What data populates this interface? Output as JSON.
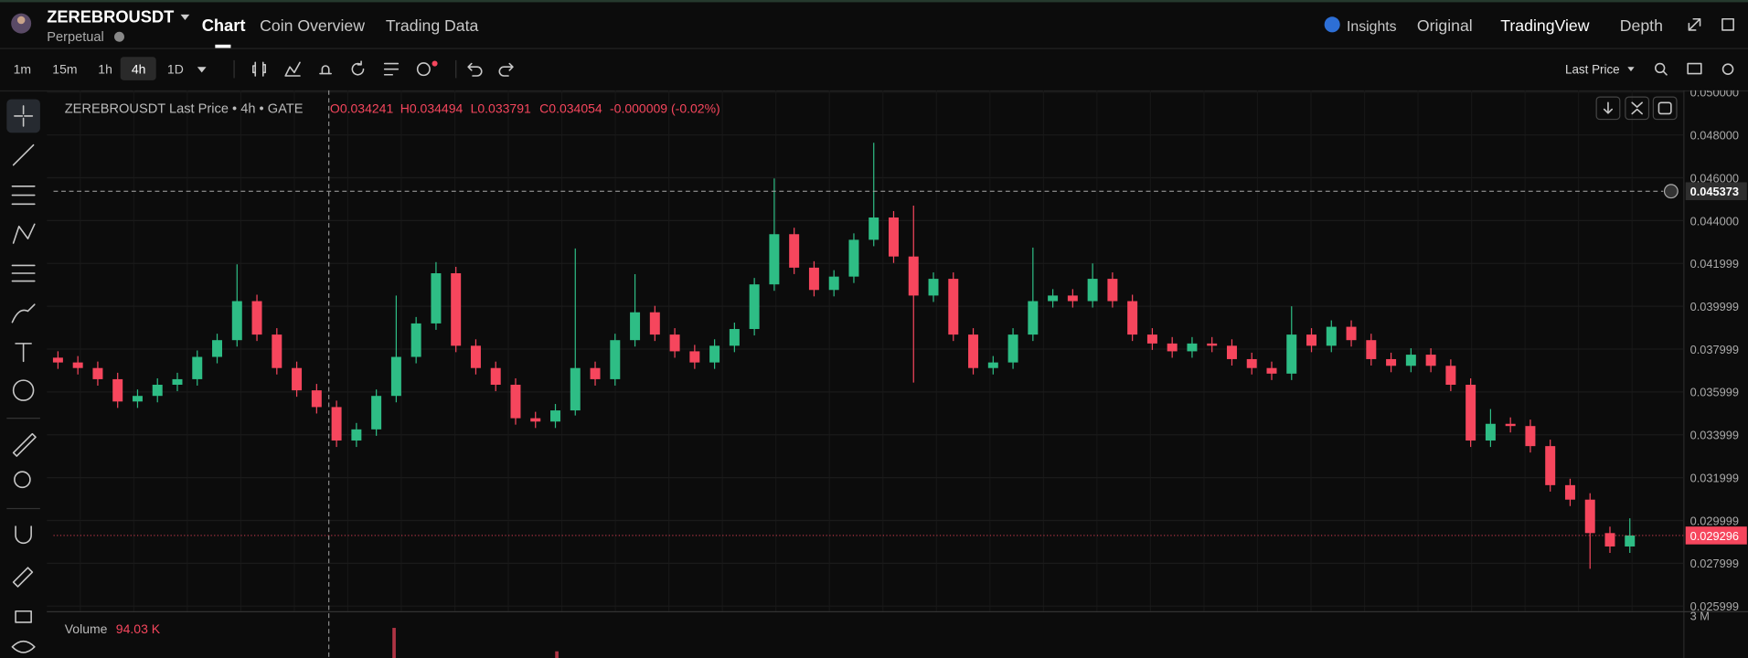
{
  "header": {
    "symbol": "ZEREBROUSDT",
    "contract": "Perpetual",
    "tabs": [
      "Chart",
      "Coin Overview",
      "Trading Data"
    ],
    "right_menu": [
      "Insights",
      "Original",
      "TradingView",
      "Depth"
    ]
  },
  "toolbar": {
    "intervals": [
      "1m",
      "15m",
      "1h",
      "4h",
      "1D"
    ],
    "price_source": "Last Price"
  },
  "chart_data": {
    "type": "candlestick",
    "title": "ZEREBROUSDT Last Price • 4h • GATE",
    "ohlc_legend": [
      "O0.034241",
      "H0.034494",
      "L0.033791",
      "C0.034054",
      "-0.000009 (-0.02%)"
    ],
    "up_color": "#2ebd85",
    "down_color": "#f6465d",
    "grid": true,
    "ylim": [
      0.025762,
      0.050084
    ],
    "yticks": [
      {
        "value": 0.05,
        "label": "0.050000"
      },
      {
        "value": 0.048,
        "label": "0.048000"
      },
      {
        "value": 0.046,
        "label": "0.046000"
      },
      {
        "value": 0.044,
        "label": "0.044000"
      },
      0.041999,
      0.039999,
      0.037999,
      0.035999,
      0.033999,
      0.031999,
      0.029999,
      0.027999,
      0.025999
    ],
    "crosshair_price": 0.045373,
    "last_price": 0.029296,
    "candles": [
      [
        0.0376,
        0.0379,
        0.037076,
        0.037376
      ],
      [
        0.037376,
        0.037676,
        0.036816,
        0.037116
      ],
      [
        0.037116,
        0.037416,
        0.036295,
        0.036595
      ],
      [
        0.036595,
        0.036895,
        0.035253,
        0.035553
      ],
      [
        0.035553,
        0.036114,
        0.035253,
        0.035814
      ],
      [
        0.035814,
        0.036635,
        0.035514,
        0.036335
      ],
      [
        0.036335,
        0.036895,
        0.036035,
        0.036595
      ],
      [
        0.036595,
        0.037936,
        0.036295,
        0.037636
      ],
      [
        0.037636,
        0.038718,
        0.037336,
        0.038418
      ],
      [
        0.038418,
        0.041959,
        0.038118,
        0.04024
      ],
      [
        0.04024,
        0.04054,
        0.038378,
        0.038678
      ],
      [
        0.038678,
        0.038978,
        0.036816,
        0.037116
      ],
      [
        0.037116,
        0.037416,
        0.035774,
        0.036074
      ],
      [
        0.036074,
        0.036374,
        0.034993,
        0.035293
      ],
      [
        0.035293,
        0.035593,
        0.03343,
        0.03373
      ],
      [
        0.03373,
        0.034551,
        0.03343,
        0.034251
      ],
      [
        0.034251,
        0.036114,
        0.033951,
        0.035814
      ],
      [
        0.035814,
        0.0405,
        0.035514,
        0.037636
      ],
      [
        0.037636,
        0.039499,
        0.037336,
        0.039199
      ],
      [
        0.039199,
        0.042063,
        0.038899,
        0.041542
      ],
      [
        0.041542,
        0.041842,
        0.037857,
        0.038157
      ],
      [
        0.038157,
        0.038457,
        0.036816,
        0.037116
      ],
      [
        0.037116,
        0.037416,
        0.036035,
        0.036335
      ],
      [
        0.036335,
        0.036635,
        0.034472,
        0.034772
      ],
      [
        0.034772,
        0.035072,
        0.034316,
        0.034616
      ],
      [
        0.034616,
        0.035437,
        0.034316,
        0.035137
      ],
      [
        0.035137,
        0.0427,
        0.0349,
        0.037116
      ],
      [
        0.037116,
        0.037416,
        0.036295,
        0.036595
      ],
      [
        0.036595,
        0.038718,
        0.036295,
        0.038418
      ],
      [
        0.038418,
        0.0415,
        0.038118,
        0.039719
      ],
      [
        0.039719,
        0.040019,
        0.038378,
        0.038678
      ],
      [
        0.038678,
        0.038978,
        0.037597,
        0.037897
      ],
      [
        0.037897,
        0.038197,
        0.037076,
        0.037376
      ],
      [
        0.037376,
        0.038457,
        0.037076,
        0.038157
      ],
      [
        0.038157,
        0.039238,
        0.037857,
        0.038938
      ],
      [
        0.038938,
        0.041322,
        0.038638,
        0.041022
      ],
      [
        0.041022,
        0.045969,
        0.040722,
        0.043366
      ],
      [
        0.043366,
        0.043666,
        0.041503,
        0.041803
      ],
      [
        0.041803,
        0.042103,
        0.040462,
        0.040762
      ],
      [
        0.040762,
        0.041686,
        0.040462,
        0.041386
      ],
      [
        0.041386,
        0.043405,
        0.041086,
        0.043105
      ],
      [
        0.043105,
        0.047636,
        0.042805,
        0.044146
      ],
      [
        0.044146,
        0.044446,
        0.042024,
        0.042324
      ],
      [
        0.042324,
        0.0447,
        0.036439,
        0.040501
      ],
      [
        0.040501,
        0.041582,
        0.040201,
        0.041282
      ],
      [
        0.041282,
        0.041582,
        0.038378,
        0.038678
      ],
      [
        0.038678,
        0.038978,
        0.036816,
        0.037116
      ],
      [
        0.037116,
        0.037676,
        0.036816,
        0.037376
      ],
      [
        0.037376,
        0.038978,
        0.037076,
        0.038678
      ],
      [
        0.038678,
        0.04274,
        0.038378,
        0.04024
      ],
      [
        0.04024,
        0.040801,
        0.03994,
        0.040501
      ],
      [
        0.040501,
        0.040801,
        0.03994,
        0.04024
      ],
      [
        0.04024,
        0.042,
        0.03994,
        0.041282
      ],
      [
        0.041282,
        0.041582,
        0.03994,
        0.04024
      ],
      [
        0.04024,
        0.04054,
        0.038378,
        0.038678
      ],
      [
        0.038678,
        0.038978,
        0.037962,
        0.038262
      ],
      [
        0.038262,
        0.038562,
        0.037597,
        0.037897
      ],
      [
        0.037897,
        0.038562,
        0.037597,
        0.038262
      ],
      [
        0.038262,
        0.038562,
        0.037857,
        0.038157
      ],
      [
        0.038157,
        0.038457,
        0.037232,
        0.037532
      ],
      [
        0.037532,
        0.037832,
        0.036816,
        0.037116
      ],
      [
        0.037116,
        0.037416,
        0.036555,
        0.036855
      ],
      [
        0.036855,
        0.04,
        0.036555,
        0.038678
      ],
      [
        0.038678,
        0.038978,
        0.037857,
        0.038157
      ],
      [
        0.038157,
        0.039342,
        0.037857,
        0.039042
      ],
      [
        0.039042,
        0.039342,
        0.038118,
        0.038418
      ],
      [
        0.038418,
        0.038718,
        0.037232,
        0.037532
      ],
      [
        0.037532,
        0.037832,
        0.03692,
        0.03722
      ],
      [
        0.03722,
        0.03804,
        0.03692,
        0.03774
      ],
      [
        0.03774,
        0.03804,
        0.03692,
        0.03722
      ],
      [
        0.03722,
        0.03752,
        0.036035,
        0.036335
      ],
      [
        0.036335,
        0.036635,
        0.03343,
        0.03373
      ],
      [
        0.03373,
        0.0352,
        0.03343,
        0.034511
      ],
      [
        0.034511,
        0.034811,
        0.034107,
        0.034407
      ],
      [
        0.034407,
        0.034707,
        0.03317,
        0.03347
      ],
      [
        0.03347,
        0.03377,
        0.031347,
        0.031647
      ],
      [
        0.031647,
        0.031947,
        0.03067,
        0.03097
      ],
      [
        0.03097,
        0.03127,
        0.027741,
        0.029408
      ],
      [
        0.029408,
        0.029708,
        0.028483,
        0.028783
      ],
      [
        0.028783,
        0.0301,
        0.028483,
        0.029296
      ]
    ],
    "volume": {
      "label": "Volume",
      "value_label": "94.03 K",
      "axis_label": "3 M"
    }
  }
}
